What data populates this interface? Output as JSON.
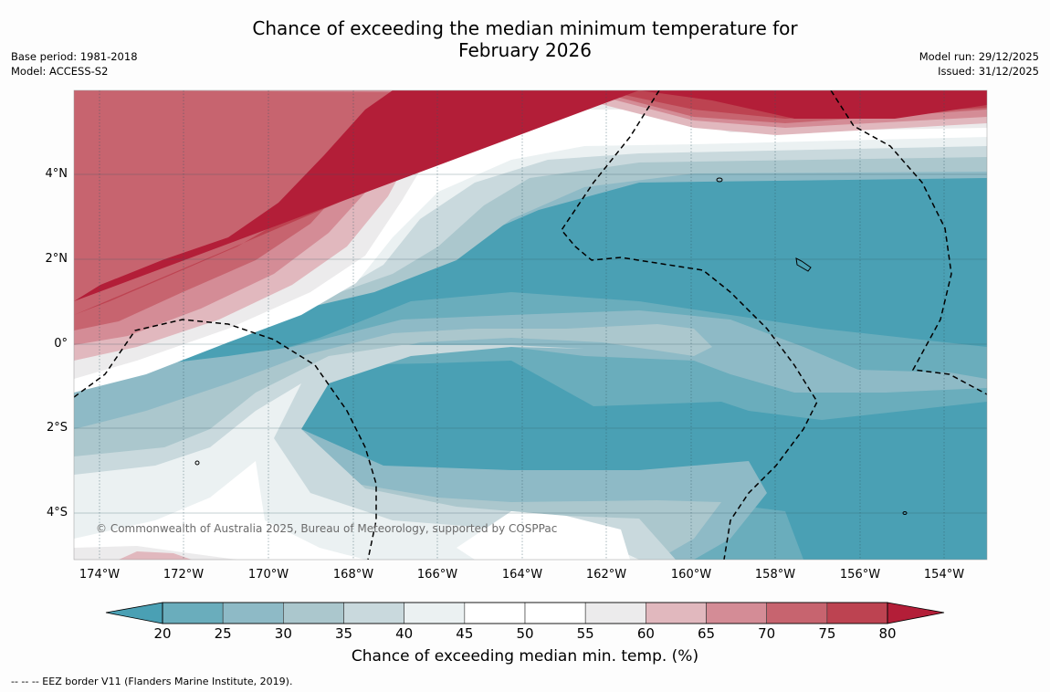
{
  "title_line1": "Chance of exceeding the median minimum temperature for",
  "title_line2": "February 2026",
  "meta_left": {
    "base_period": "Base period: 1981-2018",
    "model": "Model: ACCESS-S2"
  },
  "meta_right": {
    "model_run": "Model run: 29/12/2025",
    "issued": "Issued: 31/12/2025"
  },
  "map": {
    "lat_labels": [
      "4°N",
      "2°N",
      "0°",
      "2°S",
      "4°S"
    ],
    "lon_labels": [
      "174°W",
      "172°W",
      "170°W",
      "168°W",
      "166°W",
      "164°W",
      "162°W",
      "160°W",
      "158°W",
      "156°W",
      "154°W"
    ],
    "copyright": "© Commonwealth of Australia 2025, Bureau of Meteorology, supported by COSPPac"
  },
  "colorbar": {
    "ticks": [
      "20",
      "25",
      "30",
      "35",
      "40",
      "45",
      "50",
      "55",
      "60",
      "65",
      "70",
      "75",
      "80"
    ],
    "colors": [
      "#4aa0b4",
      "#6aadbc",
      "#8ebac6",
      "#abc7cd",
      "#c9d9dd",
      "#ebf1f2",
      "#ffffff",
      "#ffffff",
      "#ecebec",
      "#e1b8be",
      "#d48c96",
      "#c7646f",
      "#bd4351",
      "#b31e38"
    ],
    "label": "Chance of exceeding median min. temp. (%)"
  },
  "footnote": "--  --  -- EEZ border V11 (Flanders Marine Institute, 2019)."
}
